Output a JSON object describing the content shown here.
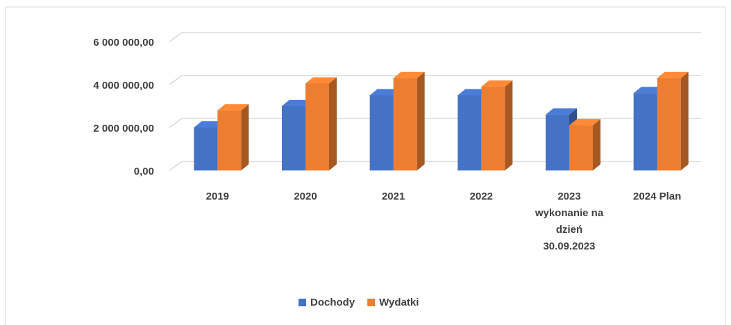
{
  "chart_data": {
    "type": "bar",
    "categories": [
      "2019",
      "2020",
      "2021",
      "2022",
      "2023 wykonanie na dzień 30.09.2023",
      "2024 Plan"
    ],
    "series": [
      {
        "name": "Dochody",
        "color": "#4472c4",
        "values": [
          2000000,
          3000000,
          3500000,
          3500000,
          2600000,
          3600000
        ]
      },
      {
        "name": "Wydatki",
        "color": "#ed7d31",
        "values": [
          2800000,
          4050000,
          4300000,
          3900000,
          2100000,
          4300000
        ]
      }
    ],
    "ylim": [
      0,
      6000000
    ],
    "yticks": [
      {
        "value": 0,
        "label": "0,00"
      },
      {
        "value": 2000000,
        "label": "2 000 000,00"
      },
      {
        "value": 4000000,
        "label": "4 000 000,00"
      },
      {
        "value": 6000000,
        "label": "6 000 000,00"
      }
    ],
    "grid": true
  }
}
